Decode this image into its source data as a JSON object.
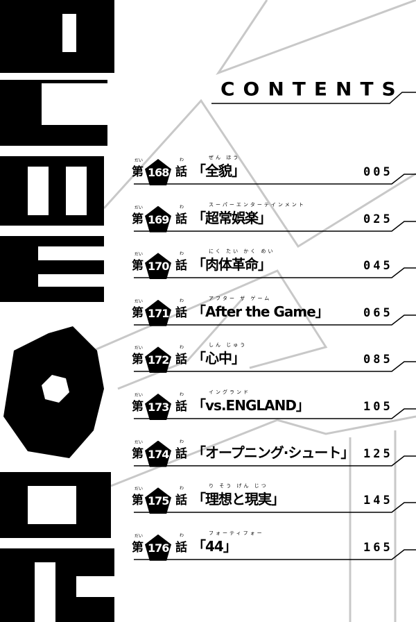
{
  "header": {
    "title": "CONTENTS"
  },
  "logo": {
    "text": "BLUE LOCK"
  },
  "chapter_prefix": "第",
  "chapter_prefix_ruby": "だい",
  "chapter_suffix": "話",
  "chapter_suffix_ruby": "わ",
  "chapters": [
    {
      "number": "168",
      "title": "「全貌」",
      "ruby": "ぜん ほう",
      "page": "005"
    },
    {
      "number": "169",
      "title": "「超常娯楽」",
      "ruby": "スーパーエンターテインメント",
      "page": "025"
    },
    {
      "number": "170",
      "title": "「肉体革命」",
      "ruby": "にく たい かく めい",
      "page": "045"
    },
    {
      "number": "171",
      "title": "「After the Game」",
      "ruby": "アフター ザ ゲーム",
      "page": "065"
    },
    {
      "number": "172",
      "title": "「心中」",
      "ruby": "しん じゅう",
      "page": "085"
    },
    {
      "number": "173",
      "title": "「vs.ENGLAND」",
      "ruby": "イングランド",
      "page": "105"
    },
    {
      "number": "174",
      "title": "「オープニング·シュート」",
      "ruby": "",
      "page": "125"
    },
    {
      "number": "175",
      "title": "「理想と現実」",
      "ruby": "り そう げん じつ",
      "page": "145"
    },
    {
      "number": "176",
      "title": "「44」",
      "ruby": "フォーティフォー",
      "page": "165"
    }
  ]
}
